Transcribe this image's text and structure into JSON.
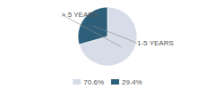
{
  "chart_data": {
    "type": "pie",
    "categories": [
      "> 5 YEARS",
      "1-5 YEARS"
    ],
    "values": [
      70.6,
      29.4
    ],
    "value_labels": [
      "70.6%",
      "29.4%"
    ],
    "colors": [
      "#d6dde8",
      "#2e5f7a"
    ],
    "legend": "bottom"
  }
}
